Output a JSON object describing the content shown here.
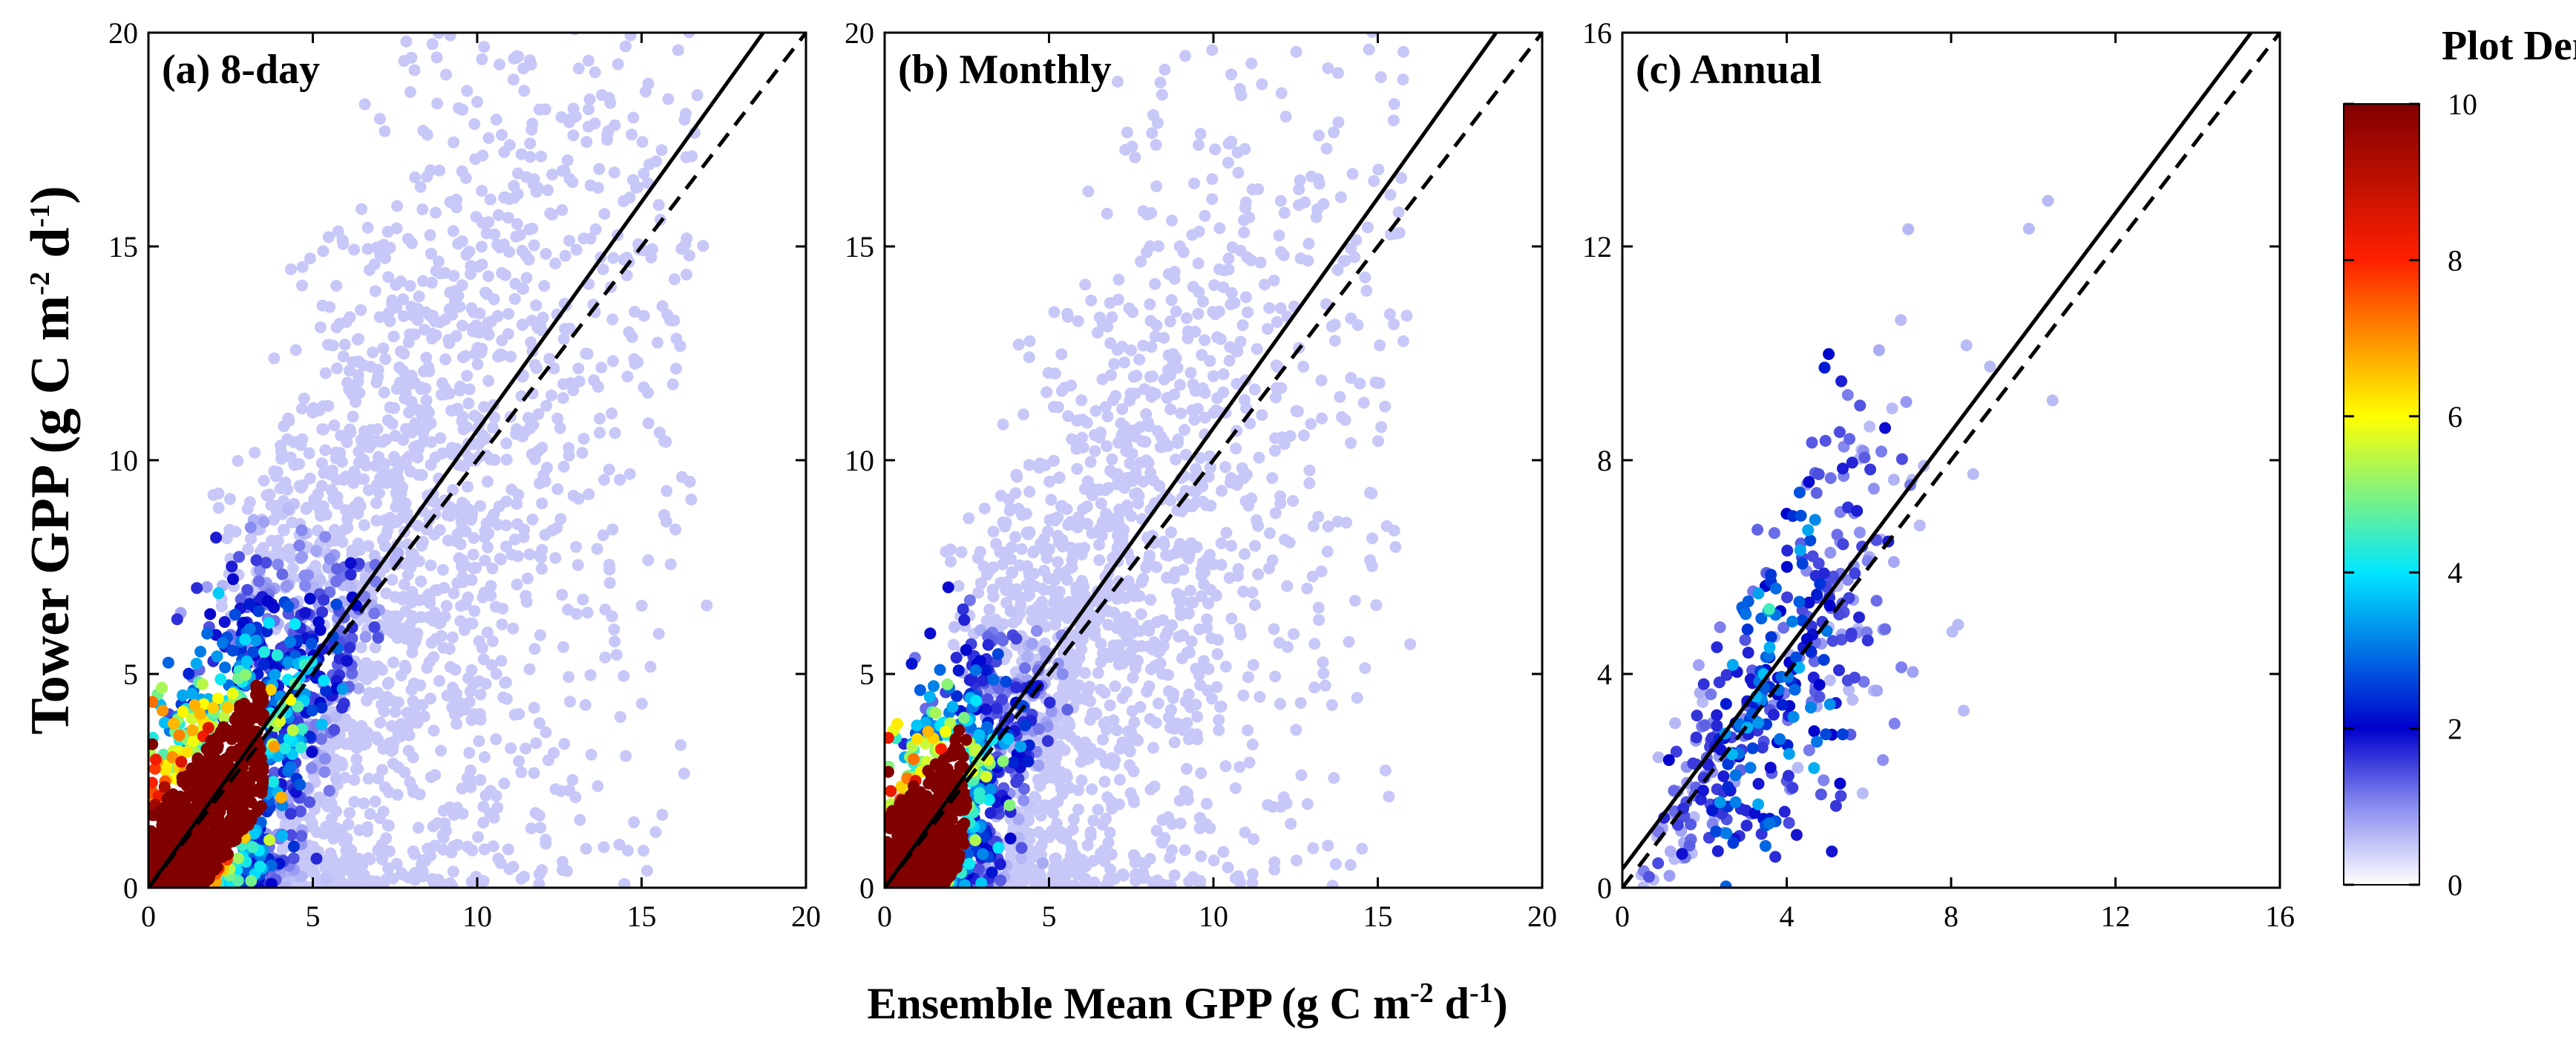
{
  "figure": {
    "ylabel": {
      "main": "Tower GPP (g C m",
      "sup1": "-2",
      "mid": " d",
      "sup2": "-1",
      "end": ")"
    },
    "xlabel": {
      "main": "Ensemble Mean GPP  (g C m",
      "sup1": "-2",
      "mid": " d",
      "sup2": "-1",
      "end": ")"
    },
    "colorbar": {
      "title": "Plot Density",
      "range": [
        0,
        10
      ],
      "ticks": [
        "0",
        "2",
        "4",
        "6",
        "8",
        "10"
      ],
      "colors": [
        "#ffffff",
        "#8a8df0",
        "#0000cc",
        "#00e6ff",
        "#ffff00",
        "#ff2000",
        "#800000"
      ]
    }
  },
  "chart_data": [
    {
      "type": "scatter",
      "title": "(a) 8-day",
      "xlim": [
        0,
        20
      ],
      "ylim": [
        0,
        20
      ],
      "xticks": [
        "0",
        "5",
        "10",
        "15",
        "20"
      ],
      "yticks": [
        "0",
        "5",
        "10",
        "15",
        "20"
      ],
      "lines": [
        {
          "name": "regression fit",
          "style": "solid",
          "x": [
            0,
            18.7
          ],
          "y": [
            0,
            20
          ]
        },
        {
          "name": "1:1 line",
          "style": "dashed",
          "x": [
            0,
            20
          ],
          "y": [
            0,
            20
          ]
        }
      ],
      "cloud": {
        "n": 3200,
        "xmax": 17,
        "slope": 0.98,
        "spread": 0.75,
        "densityCore": 3.5
      }
    },
    {
      "type": "scatter",
      "title": "(b) Monthly",
      "xlim": [
        0,
        20
      ],
      "ylim": [
        0,
        20
      ],
      "xticks": [
        "0",
        "5",
        "10",
        "15",
        "20"
      ],
      "yticks": [
        "0",
        "5",
        "10",
        "15",
        "20"
      ],
      "lines": [
        {
          "name": "regression fit",
          "style": "solid",
          "x": [
            0,
            18.6
          ],
          "y": [
            0,
            20
          ]
        },
        {
          "name": "1:1 line",
          "style": "dashed",
          "x": [
            0,
            20
          ],
          "y": [
            0,
            20
          ]
        }
      ],
      "cloud": {
        "n": 2400,
        "xmax": 16,
        "slope": 0.93,
        "spread": 0.6,
        "densityCore": 2.5
      }
    },
    {
      "type": "scatter",
      "title": "(c) Annual",
      "xlim": [
        0,
        16
      ],
      "ylim": [
        0,
        16
      ],
      "xticks": [
        "0",
        "4",
        "8",
        "12",
        "16"
      ],
      "yticks": [
        "0",
        "4",
        "8",
        "12",
        "16"
      ],
      "lines": [
        {
          "name": "regression fit",
          "style": "solid",
          "x": [
            0,
            15.3
          ],
          "y": [
            0.35,
            16
          ]
        },
        {
          "name": "1:1 line",
          "style": "dashed",
          "x": [
            0,
            16
          ],
          "y": [
            0,
            16
          ]
        }
      ],
      "cloud": {
        "n": 420,
        "xmax": 10.5,
        "slope": 1.05,
        "spread": 0.35,
        "densityCore": 0
      }
    }
  ]
}
